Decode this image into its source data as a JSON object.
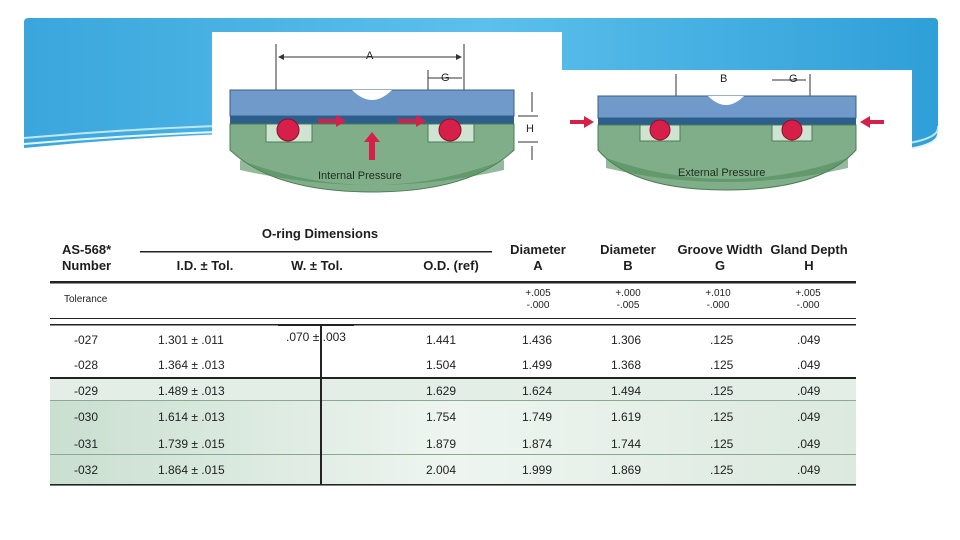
{
  "diagram_internal": {
    "dim_a": "A",
    "dim_g": "G",
    "dim_h": "H",
    "caption": "Internal Pressure"
  },
  "diagram_external": {
    "dim_b": "B",
    "dim_g": "G",
    "caption": "External Pressure"
  },
  "table": {
    "group_header": "O-ring Dimensions",
    "col_number": [
      "AS-568*",
      "Number"
    ],
    "col_id": "I.D. ± Tol.",
    "col_w": "W. ± Tol.",
    "col_od": "O.D. (ref)",
    "col_a": [
      "Diameter",
      "A"
    ],
    "col_b": [
      "Diameter",
      "B"
    ],
    "col_g": [
      "Groove Width",
      "G"
    ],
    "col_h": [
      "Gland Depth",
      "H"
    ],
    "tolerance_label": "Tolerance",
    "tol_a": [
      "+.005",
      "-.000"
    ],
    "tol_b": [
      "+.000",
      "-.005"
    ],
    "tol_g": [
      "+.010",
      "-.000"
    ],
    "tol_h": [
      "+.005",
      "-.000"
    ],
    "w_value": ".070 ± .003",
    "rows": [
      {
        "num": "-027",
        "id": "1.301 ± .011",
        "od": "1.441",
        "a": "1.436",
        "b": "1.306",
        "g": ".125",
        "h": ".049"
      },
      {
        "num": "-028",
        "id": "1.364 ± .013",
        "od": "1.504",
        "a": "1.499",
        "b": "1.368",
        "g": ".125",
        "h": ".049"
      },
      {
        "num": "-029",
        "id": "1.489 ± .013",
        "od": "1.629",
        "a": "1.624",
        "b": "1.494",
        "g": ".125",
        "h": ".049"
      },
      {
        "num": "-030",
        "id": "1.614 ± .013",
        "od": "1.754",
        "a": "1.749",
        "b": "1.619",
        "g": ".125",
        "h": ".049"
      },
      {
        "num": "-031",
        "id": "1.739 ± .015",
        "od": "1.879",
        "a": "1.874",
        "b": "1.744",
        "g": ".125",
        "h": ".049"
      },
      {
        "num": "-032",
        "id": "1.864 ± .015",
        "od": "2.004",
        "a": "1.999",
        "b": "1.869",
        "g": ".125",
        "h": ".049"
      }
    ]
  }
}
